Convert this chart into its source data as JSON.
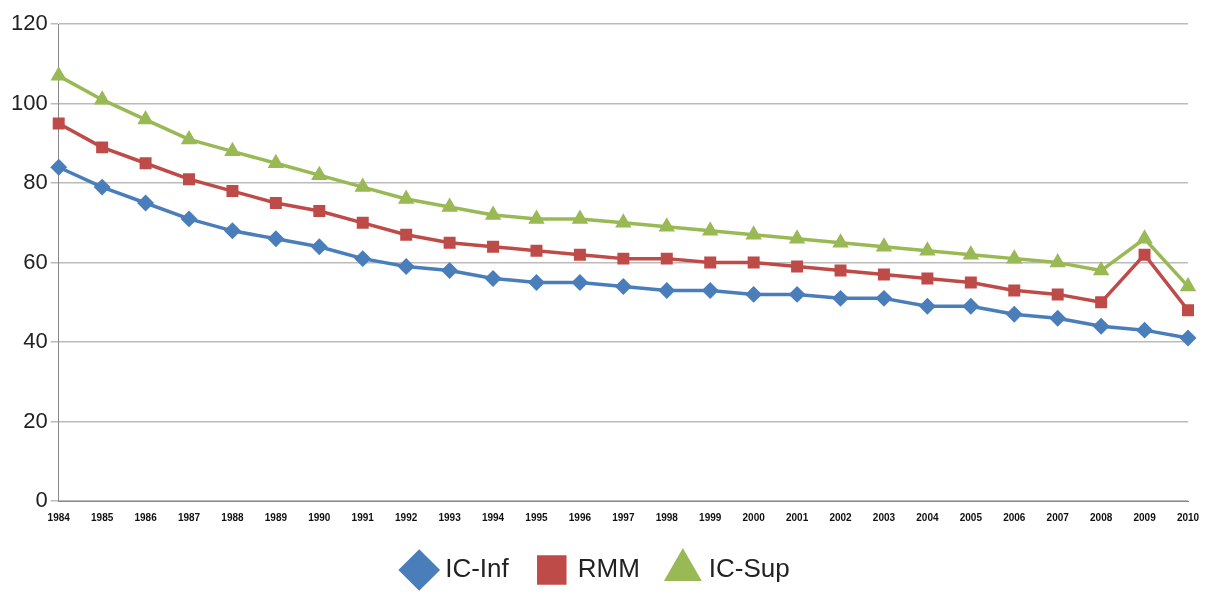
{
  "chart_data": {
    "type": "line",
    "categories": [
      "1984",
      "1985",
      "1986",
      "1987",
      "1988",
      "1989",
      "1990",
      "1991",
      "1992",
      "1993",
      "1994",
      "1995",
      "1996",
      "1997",
      "1998",
      "1999",
      "2000",
      "2001",
      "2002",
      "2003",
      "2004",
      "2005",
      "2006",
      "2007",
      "2008",
      "2009",
      "2010"
    ],
    "series": [
      {
        "name": "IC-Inf",
        "color": "#4a7ebb",
        "marker": "diamond",
        "values": [
          84,
          79,
          75,
          71,
          68,
          66,
          64,
          61,
          59,
          58,
          56,
          55,
          55,
          54,
          53,
          53,
          52,
          52,
          51,
          51,
          49,
          49,
          47,
          46,
          44,
          43,
          41
        ]
      },
      {
        "name": "RMM",
        "color": "#be4b48",
        "marker": "square",
        "values": [
          95,
          89,
          85,
          81,
          78,
          75,
          73,
          70,
          67,
          65,
          64,
          63,
          62,
          61,
          61,
          60,
          60,
          59,
          58,
          57,
          56,
          55,
          53,
          52,
          50,
          62,
          48
        ]
      },
      {
        "name": "IC-Sup",
        "color": "#98b954",
        "marker": "triangle",
        "values": [
          107,
          101,
          96,
          91,
          88,
          85,
          82,
          79,
          76,
          74,
          72,
          71,
          71,
          70,
          69,
          68,
          67,
          66,
          65,
          64,
          63,
          62,
          61,
          60,
          58,
          66,
          54
        ]
      }
    ],
    "ylim": [
      0,
      120
    ],
    "yticks": [
      0,
      20,
      40,
      60,
      80,
      100,
      120
    ],
    "grid": "y",
    "legend": "bottom",
    "line_style": "solid"
  }
}
